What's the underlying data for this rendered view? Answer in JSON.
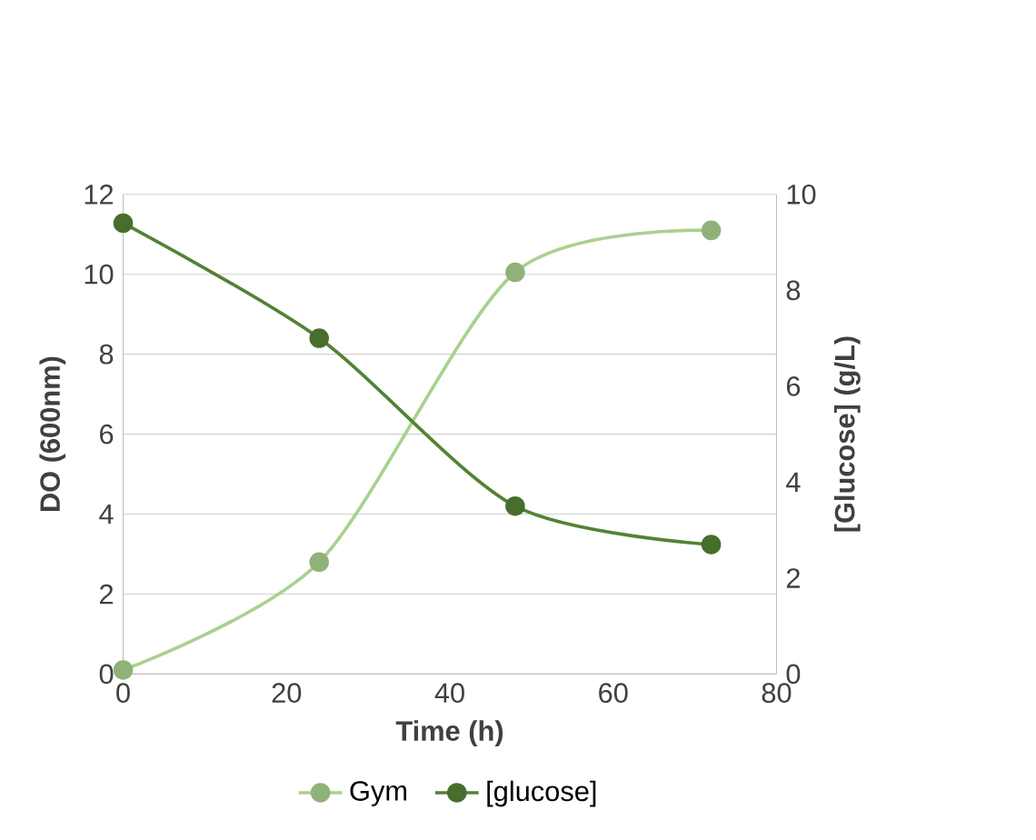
{
  "chart_data": {
    "type": "line",
    "xlabel": "Time (h)",
    "ylabel": "DO (600nm)",
    "y2label": "[Glucose] (g/L)",
    "x": [
      0,
      24,
      48,
      72
    ],
    "series": [
      {
        "name": "Gym",
        "color": "#a9d18e",
        "values": [
          0.1,
          2.8,
          10.05,
          11.1
        ]
      },
      {
        "name": "[glucose]",
        "color": "#548235",
        "values": [
          9.4,
          7.0,
          3.5,
          2.7
        ],
        "axis": "y2"
      }
    ],
    "xlim": [
      0,
      80
    ],
    "xticks": [
      0,
      20,
      40,
      60,
      80
    ],
    "ylim": [
      0,
      12
    ],
    "yticks": [
      0,
      2,
      4,
      6,
      8,
      10,
      12
    ],
    "y2lim": [
      0,
      10
    ],
    "y2ticks": [
      0,
      2,
      4,
      6,
      8,
      10
    ],
    "grid": "y",
    "legend": "bottom",
    "marker": "circle",
    "line_style": "solid"
  }
}
